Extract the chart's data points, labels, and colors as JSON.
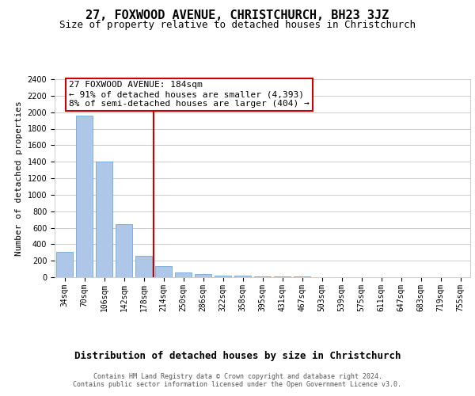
{
  "title": "27, FOXWOOD AVENUE, CHRISTCHURCH, BH23 3JZ",
  "subtitle": "Size of property relative to detached houses in Christchurch",
  "xlabel": "Distribution of detached houses by size in Christchurch",
  "ylabel": "Number of detached properties",
  "categories": [
    "34sqm",
    "70sqm",
    "106sqm",
    "142sqm",
    "178sqm",
    "214sqm",
    "250sqm",
    "286sqm",
    "322sqm",
    "358sqm",
    "395sqm",
    "431sqm",
    "467sqm",
    "503sqm",
    "539sqm",
    "575sqm",
    "611sqm",
    "647sqm",
    "683sqm",
    "719sqm",
    "755sqm"
  ],
  "values": [
    305,
    1955,
    1400,
    648,
    255,
    130,
    60,
    40,
    22,
    15,
    12,
    8,
    5,
    4,
    3,
    2,
    2,
    1,
    1,
    1,
    1
  ],
  "bar_color": "#aec6e8",
  "bar_edgecolor": "#5a9fd4",
  "red_line_x": 4.5,
  "annotation_line1": "27 FOXWOOD AVENUE: 184sqm",
  "annotation_line2": "← 91% of detached houses are smaller (4,393)",
  "annotation_line3": "8% of semi-detached houses are larger (404) →",
  "annotation_box_color": "#ffffff",
  "annotation_box_edgecolor": "#cc0000",
  "red_line_color": "#cc0000",
  "ylim": [
    0,
    2400
  ],
  "yticks": [
    0,
    200,
    400,
    600,
    800,
    1000,
    1200,
    1400,
    1600,
    1800,
    2000,
    2200,
    2400
  ],
  "footer_text": "Contains HM Land Registry data © Crown copyright and database right 2024.\nContains public sector information licensed under the Open Government Licence v3.0.",
  "background_color": "#ffffff",
  "grid_color": "#cccccc",
  "title_fontsize": 11,
  "subtitle_fontsize": 9,
  "axis_label_fontsize": 9,
  "tick_fontsize": 7,
  "ylabel_fontsize": 8,
  "footer_fontsize": 6,
  "annotation_fontsize": 8
}
